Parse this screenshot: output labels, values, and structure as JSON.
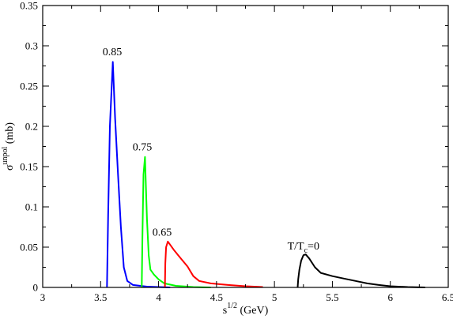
{
  "chart_data": {
    "type": "line",
    "xlabel": {
      "base": "s",
      "sup": "1/2",
      "rest": " (GeV)"
    },
    "ylabel": {
      "base": "σ",
      "sup": "unpol",
      "rest": " (mb)"
    },
    "xlim": [
      3,
      6.5
    ],
    "ylim": [
      0,
      0.35
    ],
    "xticks": [
      3,
      3.5,
      4,
      4.5,
      5,
      5.5,
      6,
      6.5
    ],
    "xtick_labels": [
      "3",
      "3.5",
      "4",
      "4.5",
      "5",
      "5.5",
      "6",
      "6.5"
    ],
    "yticks": [
      0,
      0.05,
      0.1,
      0.15,
      0.2,
      0.25,
      0.3,
      0.35
    ],
    "ytick_labels": [
      "0",
      "0.05",
      "0.1",
      "0.15",
      "0.2",
      "0.25",
      "0.3",
      "0.35"
    ],
    "grid": false,
    "legend": "none",
    "series": [
      {
        "label": "0.85",
        "color": "#0000ff",
        "points": [
          [
            3.555,
            0
          ],
          [
            3.565,
            0.09
          ],
          [
            3.58,
            0.2
          ],
          [
            3.605,
            0.28
          ],
          [
            3.625,
            0.21
          ],
          [
            3.65,
            0.14
          ],
          [
            3.675,
            0.075
          ],
          [
            3.7,
            0.025
          ],
          [
            3.73,
            0.008
          ],
          [
            3.78,
            0.003
          ],
          [
            3.9,
            0.001
          ],
          [
            4.1,
            0
          ]
        ]
      },
      {
        "label": "0.75",
        "color": "#00ff00",
        "points": [
          [
            3.855,
            0
          ],
          [
            3.86,
            0.06
          ],
          [
            3.87,
            0.14
          ],
          [
            3.883,
            0.162
          ],
          [
            3.89,
            0.13
          ],
          [
            3.9,
            0.085
          ],
          [
            3.915,
            0.04
          ],
          [
            3.93,
            0.022
          ],
          [
            3.96,
            0.016
          ],
          [
            4.0,
            0.01
          ],
          [
            4.05,
            0.005
          ],
          [
            4.15,
            0.002
          ],
          [
            4.3,
            0.0005
          ],
          [
            4.45,
            0
          ]
        ]
      },
      {
        "label": "0.65",
        "color": "#ff0000",
        "points": [
          [
            4.055,
            0
          ],
          [
            4.058,
            0.03
          ],
          [
            4.065,
            0.05
          ],
          [
            4.08,
            0.057
          ],
          [
            4.1,
            0.053
          ],
          [
            4.13,
            0.047
          ],
          [
            4.18,
            0.038
          ],
          [
            4.25,
            0.026
          ],
          [
            4.3,
            0.014
          ],
          [
            4.35,
            0.008
          ],
          [
            4.45,
            0.005
          ],
          [
            4.6,
            0.003
          ],
          [
            4.75,
            0.0015
          ],
          [
            4.9,
            0.0005
          ]
        ]
      },
      {
        "label": "T/Tc=0",
        "color": "#000000",
        "points": [
          [
            5.2,
            0
          ],
          [
            5.205,
            0.01
          ],
          [
            5.215,
            0.022
          ],
          [
            5.23,
            0.033
          ],
          [
            5.25,
            0.04
          ],
          [
            5.27,
            0.041
          ],
          [
            5.3,
            0.036
          ],
          [
            5.35,
            0.025
          ],
          [
            5.4,
            0.018
          ],
          [
            5.5,
            0.014
          ],
          [
            5.6,
            0.011
          ],
          [
            5.7,
            0.008
          ],
          [
            5.8,
            0.005
          ],
          [
            5.9,
            0.003
          ],
          [
            6.0,
            0.0015
          ],
          [
            6.15,
            0.0005
          ],
          [
            6.3,
            0
          ]
        ]
      }
    ],
    "annotations": [
      {
        "text": "0.85",
        "x": 3.6,
        "y": 0.288
      },
      {
        "text": "0.75",
        "x": 3.86,
        "y": 0.17
      },
      {
        "text": "0.65",
        "x": 4.03,
        "y": 0.064
      },
      {
        "base": "T/T",
        "sub": "c",
        "rest": "=0",
        "x": 5.25,
        "y": 0.047
      }
    ]
  }
}
